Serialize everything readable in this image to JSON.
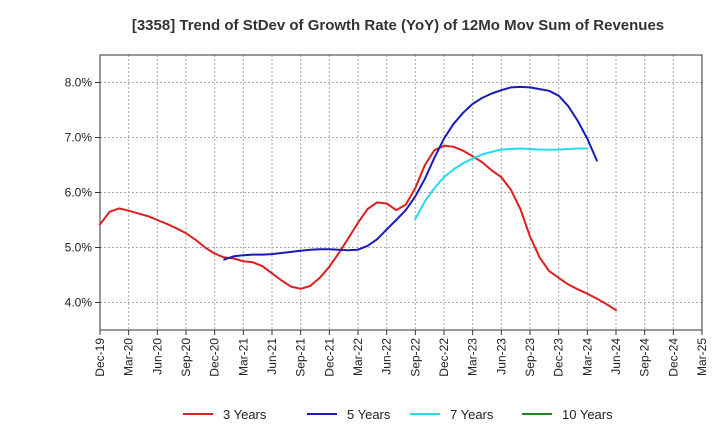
{
  "chart_data": {
    "type": "line",
    "title": "[3358]  Trend of StDev of Growth Rate (YoY) of 12Mo Mov Sum of Revenues",
    "xlabel": "",
    "ylabel": "",
    "ylim": [
      3.5,
      8.5
    ],
    "yticks": [
      4.0,
      5.0,
      6.0,
      7.0,
      8.0
    ],
    "ytick_labels": [
      "4.0%",
      "5.0%",
      "6.0%",
      "7.0%",
      "8.0%"
    ],
    "x_labels": [
      "Dec-19",
      "Mar-20",
      "Jun-20",
      "Sep-20",
      "Dec-20",
      "Mar-21",
      "Jun-21",
      "Sep-21",
      "Dec-21",
      "Mar-22",
      "Jun-22",
      "Sep-22",
      "Dec-22",
      "Mar-23",
      "Jun-23",
      "Sep-23",
      "Dec-23",
      "Mar-24",
      "Jun-24",
      "Sep-24",
      "Dec-24",
      "Mar-25"
    ],
    "grid": true,
    "series": [
      {
        "name": "3 Years",
        "color": "#dd1f1f",
        "start_index": 0,
        "values": [
          5.42,
          5.65,
          5.71,
          5.67,
          5.62,
          5.57,
          5.5,
          5.43,
          5.35,
          5.26,
          5.14,
          5.0,
          4.89,
          4.82,
          4.8,
          4.75,
          4.73,
          4.66,
          4.53,
          4.4,
          4.29,
          4.25,
          4.3,
          4.45,
          4.65,
          4.9,
          5.17,
          5.45,
          5.7,
          5.82,
          5.8,
          5.68,
          5.78,
          6.08,
          6.5,
          6.77,
          6.85,
          6.83,
          6.76,
          6.66,
          6.55,
          6.4,
          6.28,
          6.05,
          5.7,
          5.2,
          4.82,
          4.57,
          4.45,
          4.33,
          4.24,
          4.16,
          4.07,
          3.97,
          3.86
        ]
      },
      {
        "name": "5 Years",
        "color": "#1a1aba",
        "start_index": 13,
        "values": [
          4.78,
          4.84,
          4.86,
          4.87,
          4.87,
          4.88,
          4.9,
          4.92,
          4.94,
          4.96,
          4.97,
          4.97,
          4.96,
          4.95,
          4.96,
          5.03,
          5.15,
          5.33,
          5.5,
          5.68,
          5.93,
          6.25,
          6.63,
          6.98,
          7.25,
          7.45,
          7.61,
          7.72,
          7.8,
          7.86,
          7.91,
          7.92,
          7.91,
          7.88,
          7.85,
          7.76,
          7.57,
          7.3,
          6.98,
          6.58
        ]
      },
      {
        "name": "7 Years",
        "color": "#22dcee",
        "start_index": 33,
        "values": [
          5.52,
          5.84,
          6.08,
          6.28,
          6.42,
          6.53,
          6.62,
          6.69,
          6.74,
          6.78,
          6.79,
          6.8,
          6.79,
          6.78,
          6.78,
          6.78,
          6.79,
          6.8,
          6.8
        ]
      },
      {
        "name": "10 Years",
        "color": "#1a8a1a",
        "start_index": 0,
        "values": []
      }
    ],
    "legend_position": "bottom"
  }
}
